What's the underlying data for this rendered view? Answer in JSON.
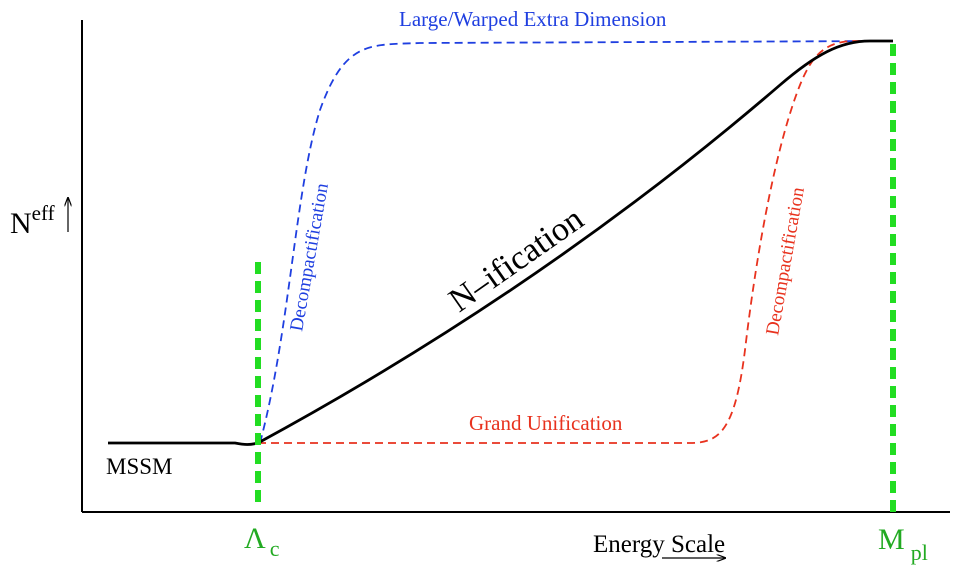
{
  "axes": {
    "y_label_base": "N",
    "y_label_sup": "eff",
    "x_label": "Energy Scale"
  },
  "markers": {
    "lambda_symbol": "Λ",
    "lambda_sub": "c",
    "planck_symbol": "M",
    "planck_sub": "pl"
  },
  "labels": {
    "mssm": "MSSM",
    "n_ification": "N–ification",
    "large_warped": "Large/Warped Extra Dimension",
    "decompactification_blue": "Decompactification",
    "grand_unification": "Grand Unification",
    "decompactification_red": "Decompactification"
  },
  "colors": {
    "axis": "#000000",
    "n_ification": "#000000",
    "extra_dimension": "#1f3fe0",
    "gut": "#e8321e",
    "marker": "#22dd22"
  }
}
